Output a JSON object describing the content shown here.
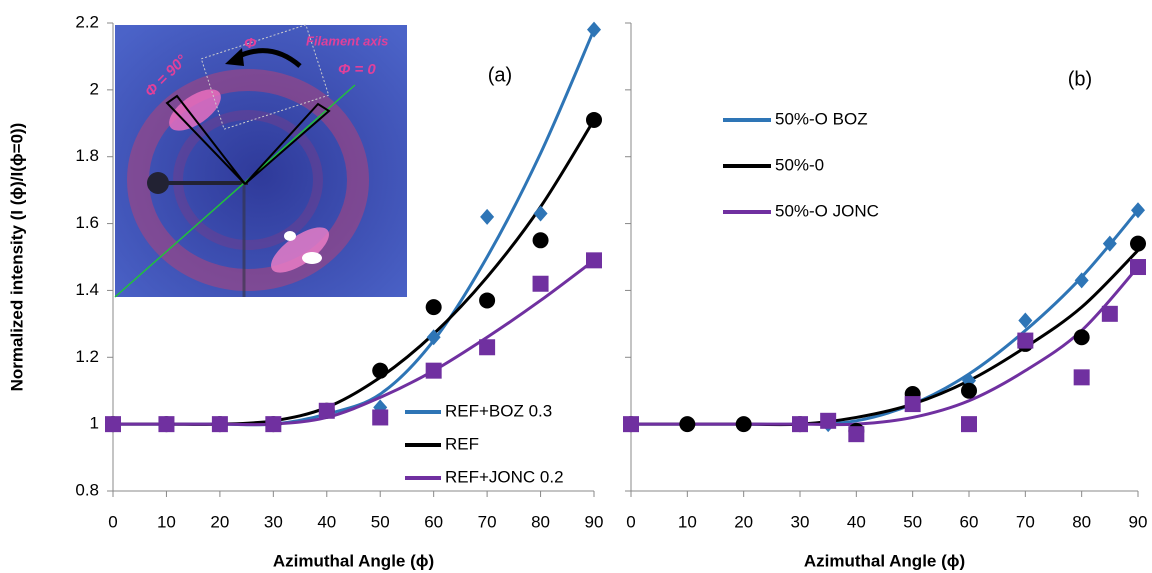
{
  "chart_data": [
    {
      "type": "line",
      "ylabel": "Normalized intensity (I (ϕ)/I(ϕ=0))",
      "xlabel": "Azimuthal Angle (ϕ)",
      "panel_label": "(a)",
      "xlim": [
        0,
        90
      ],
      "xticks": [
        0,
        10,
        20,
        30,
        40,
        50,
        60,
        70,
        80,
        90
      ],
      "ylim": [
        0.8,
        2.2
      ],
      "yticks": [
        0.8,
        1,
        1.2,
        1.4,
        1.6,
        1.8,
        2,
        2.2
      ],
      "show_ytick_labels": true,
      "legend": "lower right",
      "inset_annotations": [
        "Φ",
        "Filament axis",
        "Φ = 0",
        "Φ = 90°"
      ],
      "series": [
        {
          "name": "REF+BOZ 0.3",
          "color": "#2e75b6",
          "marker": "diamond",
          "x": [
            0,
            10,
            20,
            30,
            40,
            50,
            60,
            70,
            80,
            90
          ],
          "values": [
            1,
            1,
            1,
            1,
            1.04,
            1.05,
            1.26,
            1.62,
            1.63,
            2.18
          ],
          "fit_x": [
            0,
            10,
            20,
            30,
            40,
            50,
            60,
            70,
            80,
            90
          ],
          "fit": [
            1,
            1,
            1,
            1,
            1.03,
            1.09,
            1.25,
            1.5,
            1.81,
            2.18
          ]
        },
        {
          "name": "REF",
          "color": "#000000",
          "marker": "circle",
          "x": [
            0,
            10,
            20,
            30,
            40,
            50,
            60,
            70,
            80,
            90
          ],
          "values": [
            1,
            1,
            1,
            1,
            1.04,
            1.16,
            1.35,
            1.37,
            1.55,
            1.91
          ],
          "fit_x": [
            0,
            10,
            20,
            30,
            40,
            50,
            60,
            70,
            80,
            90
          ],
          "fit": [
            1,
            1,
            1,
            1.01,
            1.05,
            1.14,
            1.27,
            1.44,
            1.65,
            1.91
          ]
        },
        {
          "name": "REF+JONC 0.2",
          "color": "#7030a0",
          "marker": "square",
          "x": [
            0,
            10,
            20,
            30,
            40,
            50,
            60,
            70,
            80,
            90
          ],
          "values": [
            1,
            1,
            1,
            1,
            1.04,
            1.02,
            1.16,
            1.23,
            1.42,
            1.49
          ],
          "fit_x": [
            0,
            10,
            20,
            30,
            40,
            50,
            60,
            70,
            80,
            90
          ],
          "fit": [
            1,
            1,
            1,
            1,
            1.02,
            1.08,
            1.16,
            1.26,
            1.37,
            1.49
          ]
        }
      ]
    },
    {
      "type": "line",
      "xlabel": "Azimuthal Angle (ϕ)",
      "panel_label": "(b)",
      "xlim": [
        0,
        90
      ],
      "xticks": [
        0,
        10,
        20,
        30,
        40,
        50,
        60,
        70,
        80,
        90
      ],
      "ylim": [
        0.8,
        2.2
      ],
      "yticks": [
        0.8,
        1,
        1.2,
        1.4,
        1.6,
        1.8,
        2,
        2.2
      ],
      "show_ytick_labels": false,
      "legend": "upper left",
      "series": [
        {
          "name": "50%-O BOZ",
          "color": "#2e75b6",
          "marker": "diamond",
          "x": [
            0,
            35,
            50,
            60,
            70,
            80,
            85,
            90
          ],
          "values": [
            1,
            1,
            1.06,
            1.13,
            1.31,
            1.43,
            1.54,
            1.64
          ],
          "fit_x": [
            0,
            10,
            20,
            30,
            40,
            50,
            60,
            70,
            80,
            90
          ],
          "fit": [
            1,
            1,
            1,
            1,
            1.01,
            1.06,
            1.15,
            1.28,
            1.44,
            1.64
          ]
        },
        {
          "name": "50%-0",
          "color": "#000000",
          "marker": "circle",
          "x": [
            0,
            10,
            20,
            30,
            40,
            50,
            60,
            70,
            80,
            90
          ],
          "values": [
            1,
            1,
            1,
            1,
            0.98,
            1.09,
            1.1,
            1.24,
            1.26,
            1.54
          ],
          "fit_x": [
            0,
            10,
            20,
            30,
            40,
            50,
            60,
            70,
            80,
            90
          ],
          "fit": [
            1,
            1,
            1,
            1,
            1.02,
            1.06,
            1.13,
            1.23,
            1.35,
            1.52
          ]
        },
        {
          "name": "50%-O JONC",
          "color": "#7030a0",
          "marker": "square",
          "x": [
            0,
            30,
            35,
            40,
            50,
            60,
            70,
            80,
            85,
            90
          ],
          "values": [
            1,
            1,
            1.01,
            0.97,
            1.06,
            1,
            1.25,
            1.14,
            1.33,
            1.47
          ],
          "fit_x": [
            0,
            10,
            20,
            30,
            40,
            50,
            60,
            70,
            80,
            90
          ],
          "fit": [
            1,
            1,
            1,
            1,
            1,
            1.02,
            1.07,
            1.16,
            1.28,
            1.47
          ]
        }
      ]
    }
  ]
}
